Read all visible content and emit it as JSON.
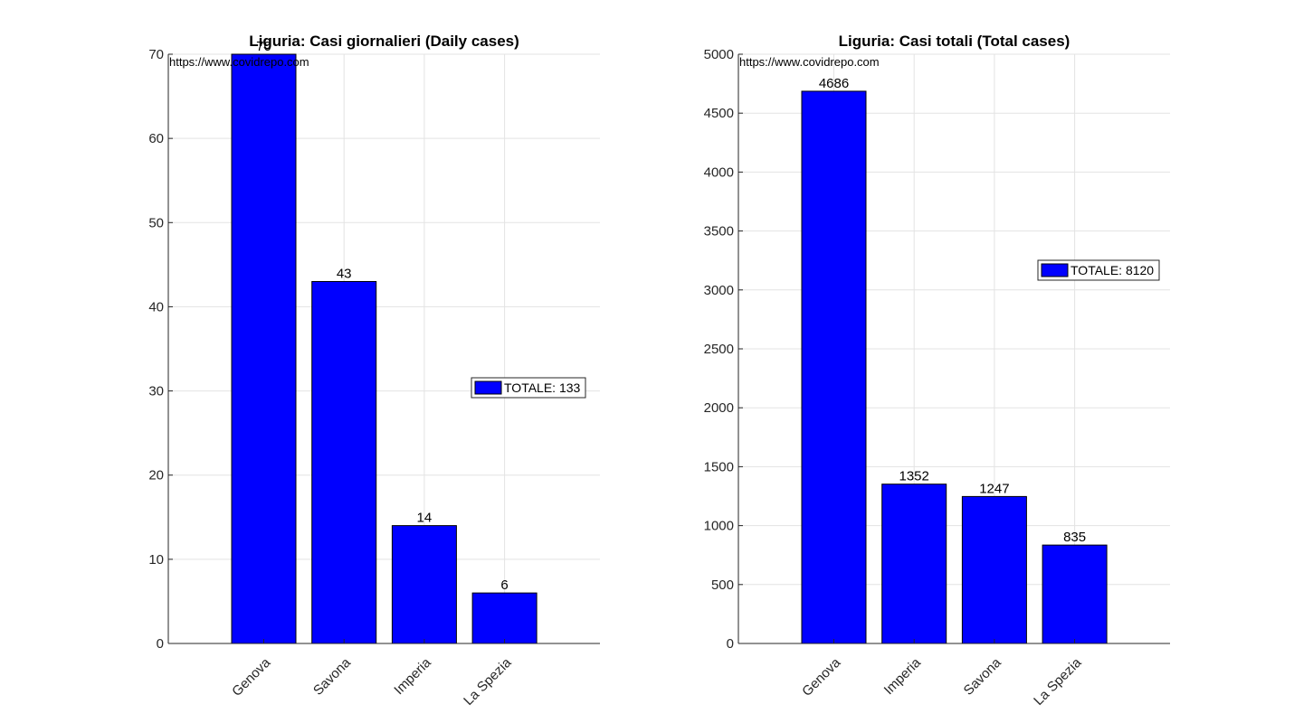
{
  "chart_data": [
    {
      "type": "bar",
      "title": "Liguria: Casi giornalieri (Daily cases)",
      "watermark": "https://www.covidrepo.com",
      "categories": [
        "Genova",
        "Savona",
        "Imperia",
        "La Spezia"
      ],
      "values": [
        70,
        43,
        14,
        6
      ],
      "data_labels": [
        "70",
        "43",
        "14",
        "6"
      ],
      "ylim": [
        0,
        70
      ],
      "yticks": [
        0,
        10,
        20,
        30,
        40,
        50,
        60,
        70
      ],
      "legend": {
        "label": "TOTALE: 133",
        "placement": "right"
      },
      "bar_color": "#0000ff",
      "grid": true
    },
    {
      "type": "bar",
      "title": "Liguria: Casi totali (Total cases)",
      "watermark": "https://www.covidrepo.com",
      "categories": [
        "Genova",
        "Imperia",
        "Savona",
        "La Spezia"
      ],
      "values": [
        4686,
        1352,
        1247,
        835
      ],
      "data_labels": [
        "4686",
        "1352",
        "1247",
        "835"
      ],
      "ylim": [
        0,
        5000
      ],
      "yticks": [
        0,
        500,
        1000,
        1500,
        2000,
        2500,
        3000,
        3500,
        4000,
        4500,
        5000
      ],
      "legend": {
        "label": "TOTALE: 8120",
        "placement": "right"
      },
      "bar_color": "#0000ff",
      "grid": true
    }
  ]
}
